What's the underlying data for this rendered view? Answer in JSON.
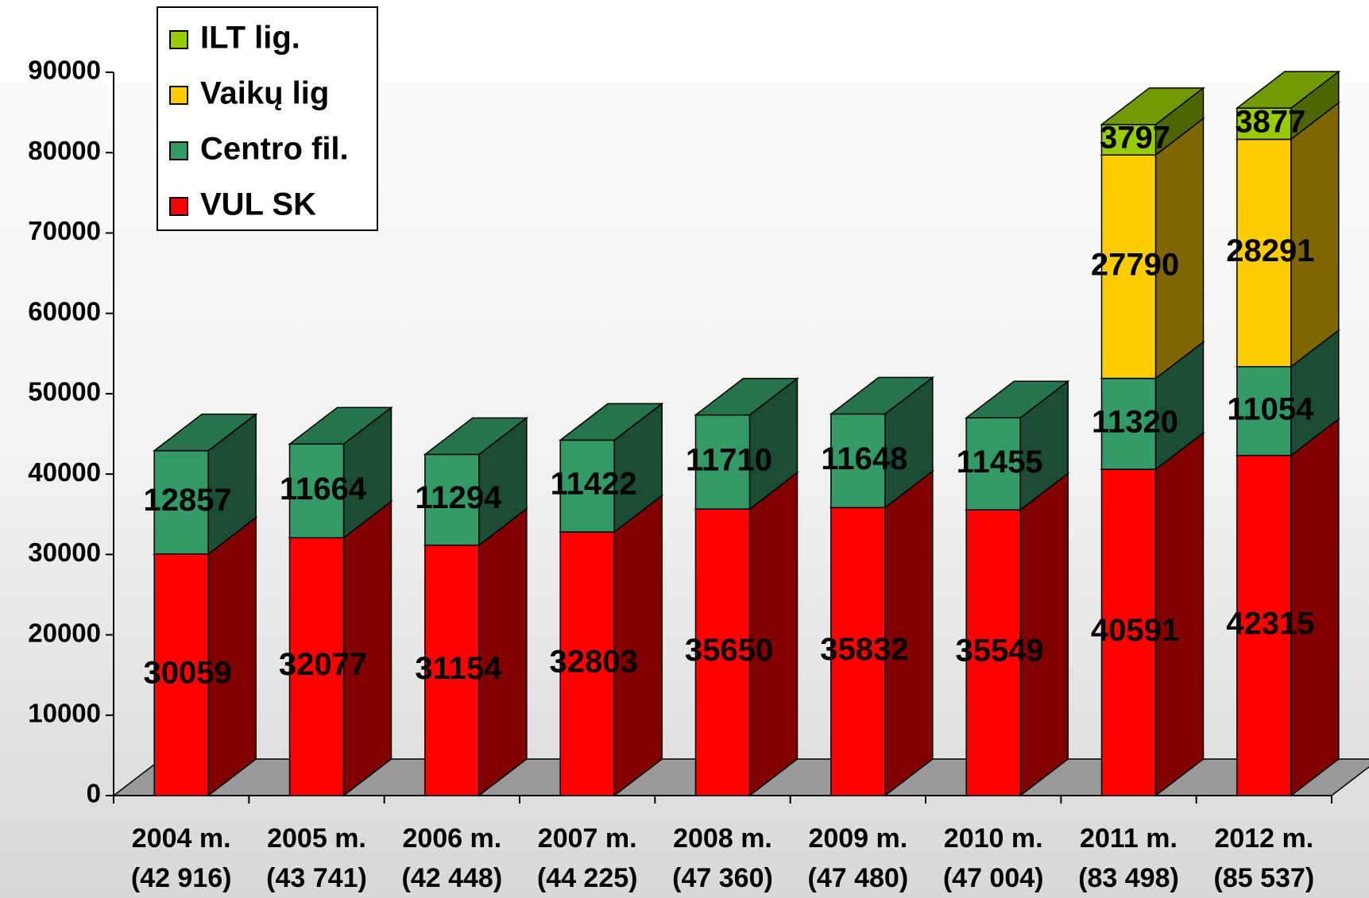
{
  "chart_data": {
    "type": "bar3d-stacked",
    "categories": [
      "2004 m.",
      "2005 m.",
      "2006 m.",
      "2007 m.",
      "2008 m.",
      "2009 m.",
      "2010 m.",
      "2011 m.",
      "2012 m."
    ],
    "category_sublabels": [
      "(42 916)",
      "(43 741)",
      "(42 448)",
      "(44 225)",
      "(47 360)",
      "(47 480)",
      "(47 004)",
      "(83 498)",
      "(85 537)"
    ],
    "series": [
      {
        "name": "VUL SK",
        "color": "#ff0000",
        "values": [
          30059,
          32077,
          31154,
          32803,
          35650,
          35832,
          35549,
          40591,
          42315
        ]
      },
      {
        "name": "Centro fil.",
        "color": "#339966",
        "values": [
          12857,
          11664,
          11294,
          11422,
          11710,
          11648,
          11455,
          11320,
          11054
        ]
      },
      {
        "name": "Vaikų lig",
        "color": "#ffcc00",
        "values": [
          null,
          null,
          null,
          null,
          null,
          null,
          null,
          27790,
          28291
        ]
      },
      {
        "name": "ILT lig.",
        "color": "#99cc00",
        "values": [
          null,
          null,
          null,
          null,
          null,
          null,
          null,
          3797,
          3877
        ]
      }
    ],
    "ylim": [
      0,
      90000
    ],
    "yticks": [
      0,
      10000,
      20000,
      30000,
      40000,
      50000,
      60000,
      70000,
      80000,
      90000
    ],
    "grid": false,
    "legend": "top-left"
  }
}
